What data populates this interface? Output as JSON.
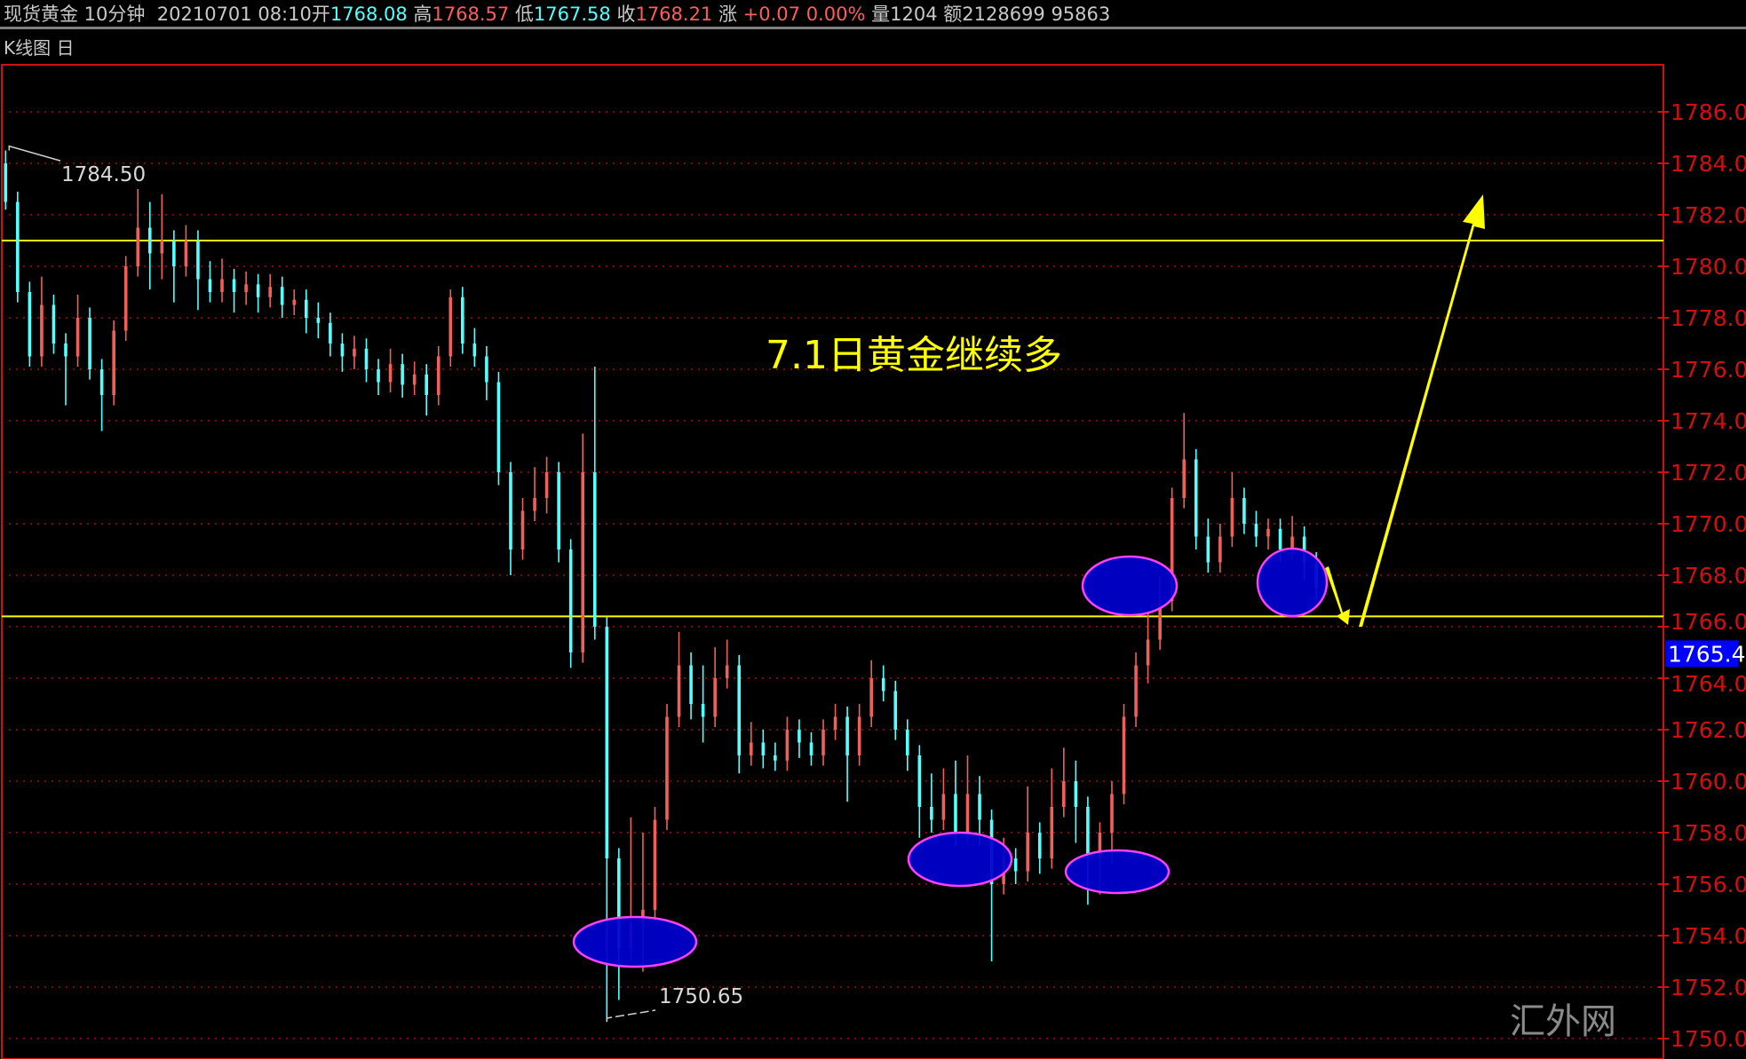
{
  "header": {
    "name": "现货黄金 10分钟",
    "datetime": "20210701 08:10",
    "open_label": "开",
    "open": "1768.08",
    "high_label": "高",
    "high": "1768.57",
    "low_label": "低",
    "low": "1767.58",
    "close_label": "收",
    "close": "1768.21",
    "change_label": "涨",
    "change": "+0.07 0.00%",
    "volume": "量1204",
    "amount": "额2128699 95863"
  },
  "subheader": {
    "label": "K线图",
    "toggle_icon": "日"
  },
  "colors": {
    "up": "#f0605a",
    "down": "#54ffff",
    "axis": "#d01010",
    "grid": "#9a1010",
    "support_line": "#ffff00",
    "ellipse_fill": "#0000d0",
    "ellipse_stroke": "#ff40ff",
    "price_box": "#0000ff"
  },
  "chart_data": {
    "type": "candlestick",
    "title": "",
    "ylim": [
      1750,
      1787
    ],
    "yticks": [
      "1786.0",
      "1784.0",
      "1782.0",
      "1780.0",
      "1778.0",
      "1776.0",
      "1774.0",
      "1772.0",
      "1770.0",
      "1768.0",
      "1766.0",
      "1764.0",
      "1762.0",
      "1760.0",
      "1758.0",
      "1756.0",
      "1754.0",
      "1752.0",
      "1750.0"
    ],
    "grid": true,
    "current_price": "1765.4",
    "max_label": "1784.50",
    "min_label": "1750.65",
    "annotation_text": "7.1日黄金继续多",
    "horizontal_lines": [
      1781.0,
      1766.4
    ],
    "highlighted_lows": [
      1753.8,
      1757.5,
      1756.5,
      1767.7,
      1767.8
    ],
    "candles": [
      [
        1784,
        1784.5,
        1782.2,
        1782.5
      ],
      [
        1782.5,
        1782.9,
        1778.6,
        1779
      ],
      [
        1779,
        1779.4,
        1776.1,
        1776.5
      ],
      [
        1776.5,
        1779.6,
        1776.1,
        1778.5
      ],
      [
        1778.5,
        1778.9,
        1776.6,
        1777
      ],
      [
        1777,
        1777.4,
        1774.6,
        1776.5
      ],
      [
        1776.5,
        1778.9,
        1776.1,
        1778
      ],
      [
        1778,
        1778.4,
        1775.6,
        1776
      ],
      [
        1776,
        1776.4,
        1773.6,
        1775
      ],
      [
        1775,
        1777.9,
        1774.6,
        1777.5
      ],
      [
        1777.5,
        1780.4,
        1777.1,
        1780
      ],
      [
        1780,
        1783,
        1779.6,
        1781.5
      ],
      [
        1781.5,
        1782.5,
        1779.1,
        1780.5
      ],
      [
        1780.5,
        1782.8,
        1779.5,
        1781
      ],
      [
        1781,
        1781.4,
        1778.6,
        1780
      ],
      [
        1780,
        1781.6,
        1779.6,
        1781
      ],
      [
        1781,
        1781.4,
        1778.3,
        1779.5
      ],
      [
        1779.5,
        1780.2,
        1778.6,
        1779
      ],
      [
        1779,
        1780.3,
        1778.6,
        1779.5
      ],
      [
        1779.5,
        1779.9,
        1778.2,
        1779
      ],
      [
        1779,
        1779.8,
        1778.5,
        1779.3
      ],
      [
        1779.3,
        1779.7,
        1778.2,
        1778.8
      ],
      [
        1778.8,
        1779.7,
        1778.4,
        1779.2
      ],
      [
        1779.2,
        1779.6,
        1778,
        1778.5
      ],
      [
        1778.5,
        1779.1,
        1778.1,
        1778.7
      ],
      [
        1778.7,
        1779.1,
        1777.4,
        1778
      ],
      [
        1778,
        1778.6,
        1777.2,
        1777.8
      ],
      [
        1777.8,
        1778.2,
        1776.5,
        1777
      ],
      [
        1777,
        1777.4,
        1775.9,
        1776.5
      ],
      [
        1776.5,
        1777.3,
        1776,
        1776.8
      ],
      [
        1776.8,
        1777.2,
        1775.5,
        1776
      ],
      [
        1776,
        1776.4,
        1775,
        1775.5
      ],
      [
        1775.5,
        1776.8,
        1775.1,
        1776.2
      ],
      [
        1776.2,
        1776.6,
        1774.9,
        1775.4
      ],
      [
        1775.4,
        1776.3,
        1775,
        1775.8
      ],
      [
        1775.8,
        1776.2,
        1774.2,
        1775
      ],
      [
        1775,
        1776.9,
        1774.6,
        1776.5
      ],
      [
        1776.5,
        1779.1,
        1776.1,
        1778.8
      ],
      [
        1778.8,
        1779.2,
        1776.6,
        1777
      ],
      [
        1777,
        1777.6,
        1776.1,
        1776.5
      ],
      [
        1776.5,
        1776.9,
        1774.8,
        1775.5
      ],
      [
        1775.5,
        1775.9,
        1771.5,
        1772
      ],
      [
        1772,
        1772.4,
        1768,
        1769
      ],
      [
        1769,
        1771,
        1768.6,
        1770.5
      ],
      [
        1770.5,
        1772.2,
        1770.1,
        1771
      ],
      [
        1771,
        1772.6,
        1770.4,
        1772
      ],
      [
        1772,
        1772.4,
        1768.5,
        1769
      ],
      [
        1769,
        1769.4,
        1764.4,
        1765
      ],
      [
        1765,
        1773.5,
        1764.6,
        1772
      ],
      [
        1772,
        1776.1,
        1765.5,
        1766
      ],
      [
        1766,
        1766.4,
        1750.65,
        1757
      ],
      [
        1757,
        1757.4,
        1751.5,
        1753.5
      ],
      [
        1753.5,
        1758.6,
        1753,
        1754.5
      ],
      [
        1754.5,
        1758,
        1752.6,
        1755
      ],
      [
        1755,
        1759,
        1754.6,
        1758.5
      ],
      [
        1758.5,
        1763,
        1758.1,
        1762.5
      ],
      [
        1762.5,
        1765.8,
        1762.1,
        1764.5
      ],
      [
        1764.5,
        1765,
        1762.4,
        1763
      ],
      [
        1763,
        1764.5,
        1761.5,
        1762.5
      ],
      [
        1762.5,
        1765.2,
        1762.1,
        1764
      ],
      [
        1764,
        1765.5,
        1763.6,
        1764.5
      ],
      [
        1764.5,
        1764.9,
        1760.3,
        1761
      ],
      [
        1761,
        1762.3,
        1760.6,
        1761.5
      ],
      [
        1761.5,
        1762,
        1760.5,
        1761
      ],
      [
        1761,
        1761.5,
        1760.4,
        1760.8
      ],
      [
        1760.8,
        1762.5,
        1760.4,
        1762
      ],
      [
        1762,
        1762.4,
        1760.9,
        1761.5
      ],
      [
        1761.5,
        1761.9,
        1760.6,
        1761
      ],
      [
        1761,
        1762.4,
        1760.6,
        1762
      ],
      [
        1762,
        1763,
        1761.6,
        1762.5
      ],
      [
        1762.5,
        1762.9,
        1759.2,
        1761
      ],
      [
        1761,
        1763,
        1760.6,
        1762.5
      ],
      [
        1762.5,
        1764.7,
        1762.1,
        1764
      ],
      [
        1764,
        1764.5,
        1763.1,
        1763.5
      ],
      [
        1763.5,
        1763.9,
        1761.6,
        1762
      ],
      [
        1762,
        1762.4,
        1760.4,
        1761
      ],
      [
        1761,
        1761.4,
        1757.8,
        1759
      ],
      [
        1759,
        1760.3,
        1758,
        1758.5
      ],
      [
        1758.5,
        1760.5,
        1758.1,
        1759.5
      ],
      [
        1759.5,
        1760.8,
        1757.5,
        1758
      ],
      [
        1758,
        1761,
        1757.6,
        1759.5
      ],
      [
        1759.5,
        1760.2,
        1757.5,
        1758.5
      ],
      [
        1758.5,
        1758.9,
        1753,
        1756
      ],
      [
        1756,
        1757.8,
        1755.6,
        1757
      ],
      [
        1757,
        1757.4,
        1756,
        1756.5
      ],
      [
        1756.5,
        1759.8,
        1756.1,
        1758
      ],
      [
        1758,
        1758.4,
        1756.4,
        1757
      ],
      [
        1757,
        1760.5,
        1756.6,
        1759
      ],
      [
        1759,
        1761.3,
        1758.6,
        1760
      ],
      [
        1760,
        1760.8,
        1757.6,
        1759
      ],
      [
        1759,
        1759.4,
        1755.2,
        1757
      ],
      [
        1757,
        1758.4,
        1755.6,
        1758
      ],
      [
        1758,
        1760,
        1756.8,
        1759.5
      ],
      [
        1759.5,
        1763,
        1759.1,
        1762.5
      ],
      [
        1762.5,
        1765,
        1762.1,
        1764.5
      ],
      [
        1764.5,
        1766.5,
        1763.8,
        1765.5
      ],
      [
        1765.5,
        1768,
        1765.1,
        1767
      ],
      [
        1767,
        1771.4,
        1766.6,
        1771
      ],
      [
        1771,
        1774.3,
        1770.6,
        1772.5
      ],
      [
        1772.5,
        1772.9,
        1769,
        1769.5
      ],
      [
        1769.5,
        1770.2,
        1768.1,
        1768.5
      ],
      [
        1768.5,
        1770,
        1768.1,
        1769.5
      ],
      [
        1769.5,
        1772,
        1769.1,
        1771
      ],
      [
        1771,
        1771.4,
        1769.6,
        1770
      ],
      [
        1770,
        1770.5,
        1769.1,
        1769.5
      ],
      [
        1769.5,
        1770.2,
        1769,
        1769.8
      ],
      [
        1769.8,
        1770.2,
        1768.5,
        1769
      ],
      [
        1769,
        1770.3,
        1768.6,
        1769.5
      ],
      [
        1769.5,
        1769.9,
        1767.8,
        1768.5
      ],
      [
        1768.5,
        1768.9,
        1767.1,
        1767.5
      ]
    ]
  },
  "watermark": "汇外网"
}
